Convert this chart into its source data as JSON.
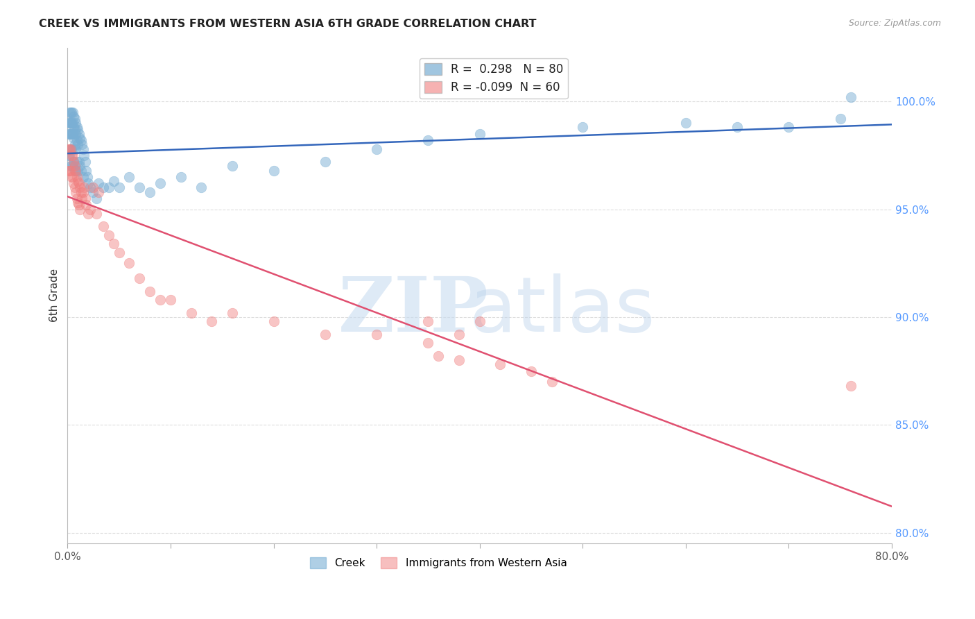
{
  "title": "CREEK VS IMMIGRANTS FROM WESTERN ASIA 6TH GRADE CORRELATION CHART",
  "source": "Source: ZipAtlas.com",
  "ylabel": "6th Grade",
  "legend_labels": [
    "Creek",
    "Immigrants from Western Asia"
  ],
  "blue_R": 0.298,
  "blue_N": 80,
  "pink_R": -0.099,
  "pink_N": 60,
  "blue_color": "#7AAFD4",
  "pink_color": "#F08080",
  "blue_line_color": "#3366BB",
  "pink_line_color": "#E05070",
  "xlim": [
    0.0,
    0.8
  ],
  "ylim": [
    0.795,
    1.025
  ],
  "right_yticks": [
    1.0,
    0.95,
    0.9,
    0.85,
    0.8
  ],
  "right_yticklabels": [
    "100.0%",
    "95.0%",
    "90.0%",
    "85.0%",
    "80.0%"
  ],
  "xticks": [
    0.0,
    0.1,
    0.2,
    0.3,
    0.4,
    0.5,
    0.6,
    0.7,
    0.8
  ],
  "xticklabels": [
    "0.0%",
    "",
    "",
    "",
    "",
    "",
    "",
    "",
    "80.0%"
  ],
  "blue_points_x": [
    0.001,
    0.001,
    0.001,
    0.002,
    0.002,
    0.002,
    0.002,
    0.003,
    0.003,
    0.003,
    0.003,
    0.003,
    0.004,
    0.004,
    0.004,
    0.004,
    0.004,
    0.005,
    0.005,
    0.005,
    0.005,
    0.005,
    0.006,
    0.006,
    0.006,
    0.006,
    0.007,
    0.007,
    0.007,
    0.007,
    0.008,
    0.008,
    0.008,
    0.008,
    0.009,
    0.009,
    0.009,
    0.01,
    0.01,
    0.01,
    0.011,
    0.011,
    0.012,
    0.012,
    0.013,
    0.013,
    0.014,
    0.015,
    0.015,
    0.016,
    0.017,
    0.018,
    0.019,
    0.02,
    0.022,
    0.025,
    0.028,
    0.03,
    0.035,
    0.04,
    0.045,
    0.05,
    0.06,
    0.07,
    0.08,
    0.09,
    0.11,
    0.13,
    0.16,
    0.2,
    0.25,
    0.3,
    0.35,
    0.4,
    0.5,
    0.6,
    0.65,
    0.7,
    0.75,
    0.76
  ],
  "blue_points_y": [
    0.99,
    0.985,
    0.975,
    0.995,
    0.99,
    0.985,
    0.975,
    0.995,
    0.99,
    0.985,
    0.978,
    0.97,
    0.995,
    0.99,
    0.985,
    0.978,
    0.97,
    0.995,
    0.99,
    0.985,
    0.978,
    0.97,
    0.993,
    0.988,
    0.983,
    0.972,
    0.992,
    0.987,
    0.98,
    0.968,
    0.99,
    0.985,
    0.978,
    0.968,
    0.988,
    0.982,
    0.972,
    0.987,
    0.98,
    0.968,
    0.985,
    0.972,
    0.983,
    0.97,
    0.982,
    0.968,
    0.98,
    0.978,
    0.965,
    0.975,
    0.972,
    0.968,
    0.965,
    0.962,
    0.96,
    0.958,
    0.955,
    0.962,
    0.96,
    0.96,
    0.963,
    0.96,
    0.965,
    0.96,
    0.958,
    0.962,
    0.965,
    0.96,
    0.97,
    0.968,
    0.972,
    0.978,
    0.982,
    0.985,
    0.988,
    0.99,
    0.988,
    0.988,
    0.992,
    1.002
  ],
  "pink_points_x": [
    0.001,
    0.001,
    0.002,
    0.002,
    0.003,
    0.003,
    0.004,
    0.004,
    0.005,
    0.005,
    0.006,
    0.006,
    0.007,
    0.007,
    0.008,
    0.008,
    0.009,
    0.009,
    0.01,
    0.01,
    0.011,
    0.011,
    0.012,
    0.012,
    0.013,
    0.014,
    0.015,
    0.016,
    0.017,
    0.018,
    0.02,
    0.022,
    0.025,
    0.028,
    0.03,
    0.035,
    0.04,
    0.045,
    0.05,
    0.06,
    0.07,
    0.08,
    0.09,
    0.1,
    0.12,
    0.14,
    0.16,
    0.2,
    0.25,
    0.3,
    0.35,
    0.38,
    0.4,
    0.35,
    0.36,
    0.38,
    0.42,
    0.45,
    0.47,
    0.76
  ],
  "pink_points_y": [
    0.978,
    0.968,
    0.978,
    0.968,
    0.978,
    0.968,
    0.975,
    0.965,
    0.975,
    0.965,
    0.972,
    0.962,
    0.97,
    0.96,
    0.968,
    0.958,
    0.965,
    0.955,
    0.963,
    0.953,
    0.962,
    0.952,
    0.96,
    0.95,
    0.958,
    0.955,
    0.958,
    0.96,
    0.955,
    0.952,
    0.948,
    0.95,
    0.96,
    0.948,
    0.958,
    0.942,
    0.938,
    0.934,
    0.93,
    0.925,
    0.918,
    0.912,
    0.908,
    0.908,
    0.902,
    0.898,
    0.902,
    0.898,
    0.892,
    0.892,
    0.898,
    0.892,
    0.898,
    0.888,
    0.882,
    0.88,
    0.878,
    0.875,
    0.87,
    0.868
  ],
  "background_color": "#FFFFFF",
  "grid_color": "#DDDDDD",
  "right_label_color": "#5599FF",
  "title_color": "#222222"
}
